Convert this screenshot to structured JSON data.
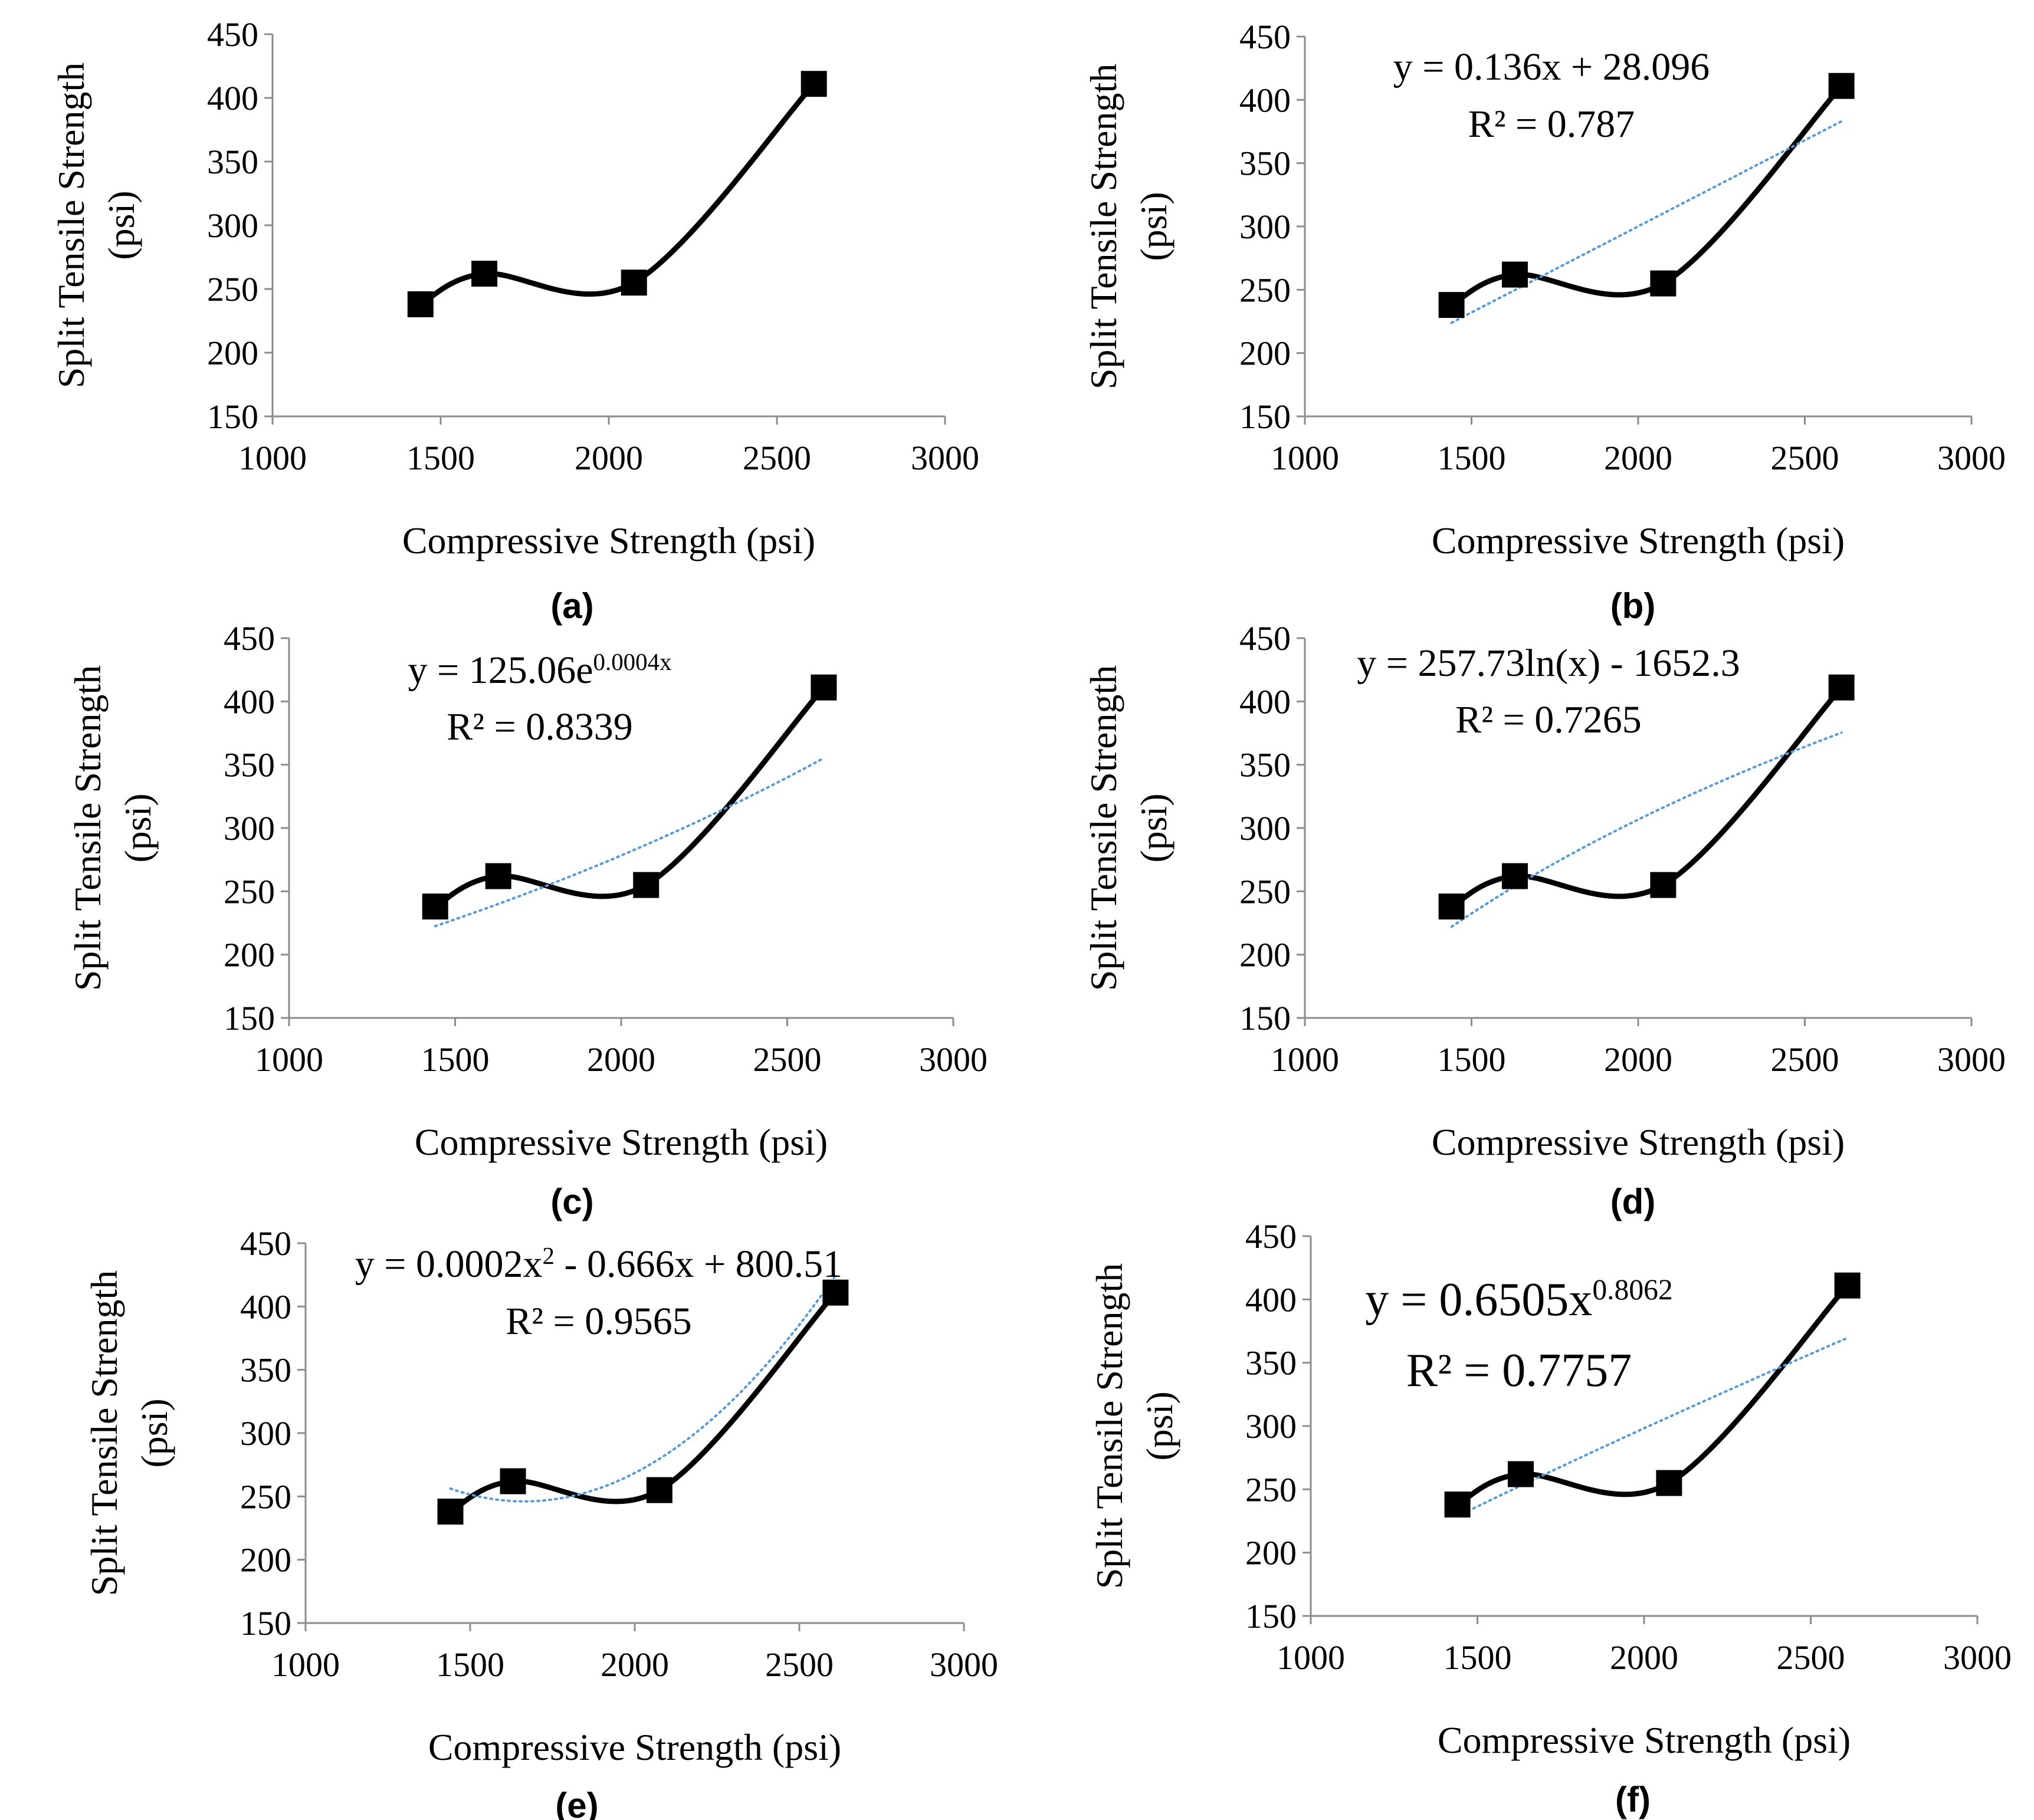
{
  "chart_data": [
    {
      "type": "line",
      "panel_label": "(a)",
      "xlabel": "Compressive Strength  (psi)",
      "ylabel_line1": "Split Tensile Strength",
      "ylabel_line2": "(psi)",
      "xlim": [
        1000,
        3000
      ],
      "ylim": [
        150,
        450
      ],
      "xticks": [
        1000,
        1500,
        2000,
        2500,
        3000
      ],
      "yticks": [
        150,
        200,
        250,
        300,
        350,
        400,
        450
      ],
      "x": [
        1440,
        1630,
        2075,
        2610
      ],
      "y": [
        238,
        262,
        255,
        411
      ],
      "marker": "square",
      "smooth": true,
      "grid": false,
      "trendline": null,
      "equation": "",
      "equation_exp": "",
      "r2": "",
      "colors": {
        "series": "#000000",
        "trend": "#5b9bd5"
      }
    },
    {
      "type": "line",
      "panel_label": "(b)",
      "xlabel": "Compressive Strength  (psi)",
      "ylabel_line1": "Split Tensile Strength",
      "ylabel_line2": "(psi)",
      "xlim": [
        1000,
        3000
      ],
      "ylim": [
        150,
        450
      ],
      "xticks": [
        1000,
        1500,
        2000,
        2500,
        3000
      ],
      "yticks": [
        150,
        200,
        250,
        300,
        350,
        400,
        450
      ],
      "x": [
        1440,
        1630,
        2075,
        2610
      ],
      "y": [
        238,
        262,
        255,
        411
      ],
      "marker": "square",
      "smooth": true,
      "grid": false,
      "trendline": "linear",
      "equation": "y = 0.136x + 28.096",
      "equation_exp": "",
      "r2": "R² = 0.787",
      "colors": {
        "series": "#000000",
        "trend": "#5b9bd5"
      }
    },
    {
      "type": "line",
      "panel_label": "(c)",
      "xlabel": "Compressive Strength  (psi)",
      "ylabel_line1": "Split Tensile Strength",
      "ylabel_line2": "(psi)",
      "xlim": [
        1000,
        3000
      ],
      "ylim": [
        150,
        450
      ],
      "xticks": [
        1000,
        1500,
        2000,
        2500,
        3000
      ],
      "yticks": [
        150,
        200,
        250,
        300,
        350,
        400,
        450
      ],
      "x": [
        1440,
        1630,
        2075,
        2610
      ],
      "y": [
        238,
        262,
        255,
        411
      ],
      "marker": "square",
      "smooth": true,
      "grid": false,
      "trendline": "exponential",
      "equation": "y = 125.06e",
      "equation_exp": "0.0004x",
      "r2": "R² = 0.8339",
      "colors": {
        "series": "#000000",
        "trend": "#5b9bd5"
      }
    },
    {
      "type": "line",
      "panel_label": "(d)",
      "xlabel": "Compressive Strength  (psi)",
      "ylabel_line1": "Split Tensile Strength",
      "ylabel_line2": "(psi)",
      "xlim": [
        1000,
        3000
      ],
      "ylim": [
        150,
        450
      ],
      "xticks": [
        1000,
        1500,
        2000,
        2500,
        3000
      ],
      "yticks": [
        150,
        200,
        250,
        300,
        350,
        400,
        450
      ],
      "x": [
        1440,
        1630,
        2075,
        2610
      ],
      "y": [
        238,
        262,
        255,
        411
      ],
      "marker": "square",
      "smooth": true,
      "grid": false,
      "trendline": "logarithmic",
      "equation": "y = 257.73ln(x) - 1652.3",
      "equation_exp": "",
      "r2": "R² = 0.7265",
      "colors": {
        "series": "#000000",
        "trend": "#5b9bd5"
      }
    },
    {
      "type": "line",
      "panel_label": "(e)",
      "xlabel": "Compressive Strength  (psi)",
      "ylabel_line1": "Split Tensile Strength",
      "ylabel_line2": "(psi)",
      "xlim": [
        1000,
        3000
      ],
      "ylim": [
        150,
        450
      ],
      "xticks": [
        1000,
        1500,
        2000,
        2500,
        3000
      ],
      "yticks": [
        150,
        200,
        250,
        300,
        350,
        400,
        450
      ],
      "x": [
        1440,
        1630,
        2075,
        2610
      ],
      "y": [
        238,
        262,
        255,
        411
      ],
      "marker": "square",
      "smooth": true,
      "grid": false,
      "trendline": "polynomial",
      "equation": "y = 0.0002x",
      "equation_exp": "2",
      "equation_tail": " - 0.666x + 800.51",
      "r2": "R² = 0.9565",
      "colors": {
        "series": "#000000",
        "trend": "#5b9bd5"
      }
    },
    {
      "type": "line",
      "panel_label": "(f)",
      "xlabel": "Compressive Strength  (psi)",
      "ylabel_line1": "Split Tensile Strength",
      "ylabel_line2": "(psi)",
      "xlim": [
        1000,
        3000
      ],
      "ylim": [
        150,
        450
      ],
      "xticks": [
        1000,
        1500,
        2000,
        2500,
        3000
      ],
      "yticks": [
        150,
        200,
        250,
        300,
        350,
        400,
        450
      ],
      "x": [
        1440,
        1630,
        2075,
        2610
      ],
      "y": [
        238,
        262,
        255,
        411
      ],
      "marker": "square",
      "smooth": true,
      "grid": false,
      "trendline": "power",
      "equation": "y = 0.6505x",
      "equation_exp": "0.8062",
      "r2": "R² = 0.7757",
      "colors": {
        "series": "#000000",
        "trend": "#5b9bd5"
      }
    }
  ]
}
